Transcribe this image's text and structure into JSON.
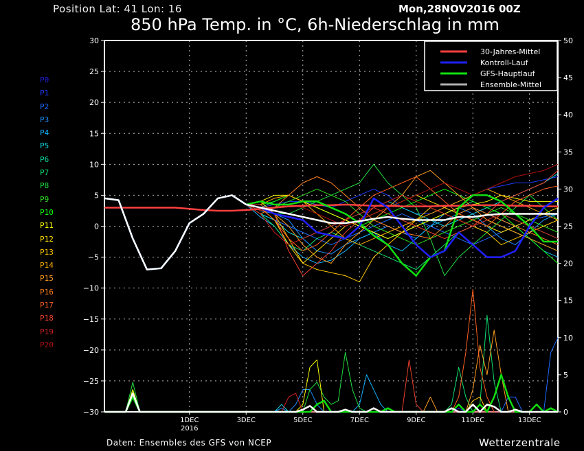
{
  "header": {
    "position": "Position  Lat: 41 Lon: 16",
    "date": "Mon,28NOV2016 00Z",
    "title": "850 hPa Temp. in °C, 6h-Niederschlag in mm"
  },
  "footer": {
    "source": "Daten: Ensembles des GFS von NCEP",
    "brand": "Wetterzentrale"
  },
  "members": [
    {
      "label": "P0",
      "color": "#2020e0"
    },
    {
      "label": "P1",
      "color": "#1c3cff"
    },
    {
      "label": "P2",
      "color": "#1e6cff"
    },
    {
      "label": "P3",
      "color": "#1e90ff"
    },
    {
      "label": "P4",
      "color": "#10b4ff"
    },
    {
      "label": "P5",
      "color": "#10d8e0"
    },
    {
      "label": "P6",
      "color": "#10e0a0"
    },
    {
      "label": "P7",
      "color": "#10e070"
    },
    {
      "label": "P8",
      "color": "#20e040"
    },
    {
      "label": "P9",
      "color": "#30e020"
    },
    {
      "label": "P10",
      "color": "#10ff10"
    },
    {
      "label": "P11",
      "color": "#ffff00"
    },
    {
      "label": "P12",
      "color": "#ffe000"
    },
    {
      "label": "P13",
      "color": "#ffc800"
    },
    {
      "label": "P14",
      "color": "#ffb000"
    },
    {
      "label": "P15",
      "color": "#ff9c20"
    },
    {
      "label": "P16",
      "color": "#ff8020"
    },
    {
      "label": "P17",
      "color": "#ff6020"
    },
    {
      "label": "P18",
      "color": "#f04030"
    },
    {
      "label": "P19",
      "color": "#d02020"
    },
    {
      "label": "P20",
      "color": "#b01010"
    }
  ],
  "chart_data": {
    "type": "line",
    "title": "850 hPa Temp. in °C, 6h-Niederschlag in mm",
    "xlabel": "",
    "ylabel_left": "°C",
    "ylabel_right": "mm",
    "x_unit": "hours since Mon,28NOV2016 00Z",
    "xlim": [
      0,
      384
    ],
    "ylim_left": [
      -30,
      30
    ],
    "ylim_right": [
      0,
      50
    ],
    "yticks_left": [
      30,
      25,
      20,
      15,
      10,
      5,
      0,
      -5,
      -10,
      -15,
      -20,
      -25,
      -30
    ],
    "yticks_right": [
      50,
      45,
      40,
      35,
      30,
      25,
      20,
      15,
      10,
      5,
      0
    ],
    "xticks": [
      {
        "hour": 72,
        "label": "1DEC",
        "sub": "2016"
      },
      {
        "hour": 120,
        "label": "3DEC"
      },
      {
        "hour": 168,
        "label": "5DEC"
      },
      {
        "hour": 216,
        "label": "7DEC"
      },
      {
        "hour": 264,
        "label": "9DEC"
      },
      {
        "hour": 312,
        "label": "11DEC"
      },
      {
        "hour": 360,
        "label": "13DEC"
      }
    ],
    "grid": true,
    "legend": {
      "placement": "top-right",
      "entries": [
        {
          "label": "30-Jahres-Mittel",
          "color": "#ff4040"
        },
        {
          "label": "Kontroll-Lauf",
          "color": "#2020ff"
        },
        {
          "label": "GFS-Hauptlauf",
          "color": "#10e010"
        },
        {
          "label": "Ensemble-Mittel",
          "color": "#b0b0b0"
        }
      ]
    },
    "temp_step_hours": 12,
    "temp_shared_start": [
      4.5,
      4.2,
      -2,
      -7,
      -6.8,
      -4,
      0.5,
      2,
      4.5,
      5,
      3.5
    ],
    "temp_members": [
      [
        3,
        2,
        1.5,
        1,
        -1,
        -1.5,
        -2,
        0,
        4.5,
        3,
        0,
        -3,
        -5,
        -4,
        -1,
        -3,
        -5,
        -5,
        -4,
        0,
        3,
        4.5
      ],
      [
        3,
        3.5,
        4,
        4,
        3.5,
        3,
        4,
        5,
        6,
        5,
        3,
        2,
        2,
        3,
        4,
        5,
        6,
        6.5,
        7,
        7,
        7.5,
        8
      ],
      [
        2,
        1,
        0,
        -1,
        -2,
        -3,
        -2,
        -1,
        0,
        1,
        2,
        1,
        0,
        -1,
        -2,
        -3,
        -2,
        -1,
        0,
        1,
        1.5,
        2
      ],
      [
        2.5,
        2,
        1,
        -2,
        -4,
        -4.5,
        -3,
        -2,
        -1,
        0,
        -1,
        -2,
        0,
        2,
        3,
        2,
        0,
        -2,
        -3,
        -1,
        1,
        2
      ],
      [
        1.5,
        0,
        -3,
        -5,
        -6,
        -5.5,
        -4,
        -2,
        -1,
        -3,
        -4,
        -2,
        0,
        1,
        2,
        3,
        2,
        1,
        0,
        -2,
        -4,
        -5
      ],
      [
        2,
        1,
        -1,
        -2,
        -1,
        0,
        1,
        2,
        3,
        4,
        3,
        2,
        1,
        0,
        1,
        2,
        3,
        4,
        5,
        6,
        7,
        8.5
      ],
      [
        3,
        4,
        5,
        4,
        3,
        2,
        1,
        0,
        -1,
        -2,
        -1,
        0,
        1,
        2,
        3,
        4,
        3,
        2,
        1,
        0,
        -1,
        -2
      ],
      [
        2,
        0,
        -3,
        -4,
        -2,
        -1,
        -2,
        -3,
        -4,
        -5,
        -6,
        -7,
        -5,
        -3,
        -1,
        0,
        1,
        0,
        -1,
        -2,
        -3,
        -4
      ],
      [
        3,
        2,
        2,
        3,
        4,
        5,
        6,
        7,
        10,
        7,
        5,
        3,
        -2,
        -8,
        -5,
        -3,
        -1,
        1,
        3,
        5,
        3,
        1
      ],
      [
        2.5,
        3,
        4,
        5,
        6,
        5,
        4,
        2,
        0,
        -1,
        -2,
        -3,
        -2,
        -1,
        0,
        1,
        2,
        3,
        2,
        1,
        0,
        -1
      ],
      [
        3.5,
        4,
        5,
        4,
        3,
        2,
        1,
        0,
        1,
        2,
        3,
        4,
        5,
        6,
        5,
        4,
        3,
        2,
        0,
        -2,
        -4,
        -6
      ],
      [
        4,
        5,
        5,
        4,
        3,
        2,
        1,
        0,
        -1,
        -2,
        -1,
        0,
        1,
        2,
        3,
        3.5,
        4,
        5,
        4.5,
        4,
        4,
        4
      ],
      [
        3,
        1,
        -3,
        -6,
        -4,
        -2,
        0,
        1,
        2,
        3,
        4,
        5,
        4,
        3,
        2,
        1,
        0,
        -1,
        0,
        1,
        2,
        3
      ],
      [
        4,
        2,
        -2,
        -6,
        -7,
        -7.5,
        -8,
        -9,
        -5,
        -3,
        -1,
        1,
        3,
        2,
        1,
        0,
        -1,
        -3,
        -2,
        -1,
        0,
        1
      ],
      [
        3.5,
        4.5,
        5,
        4,
        2,
        0,
        -2,
        -3,
        -2,
        -1,
        0,
        1,
        2,
        3,
        4,
        5,
        6,
        5,
        4,
        3,
        2,
        1
      ],
      [
        3,
        2,
        0,
        -3,
        -5,
        -6,
        -3,
        -1,
        1,
        3,
        5,
        8,
        9,
        7,
        5,
        3,
        1,
        0,
        -1,
        -2,
        -3,
        -4
      ],
      [
        2,
        3,
        5,
        7,
        8,
        7,
        5,
        3,
        1,
        0,
        -1,
        -1.5,
        -2,
        0,
        2,
        3,
        2,
        1,
        0,
        -1,
        -2,
        -3
      ],
      [
        3,
        1,
        -2,
        -4,
        -3,
        -1,
        1,
        3,
        5,
        6,
        7,
        8,
        6,
        4,
        2,
        1,
        0,
        2,
        4,
        5,
        6,
        6.5
      ],
      [
        3.5,
        2,
        -4,
        -8,
        -6,
        -4,
        -1,
        1,
        3,
        2,
        1,
        0,
        -1,
        -2,
        -1,
        0,
        2,
        4,
        5,
        6,
        7,
        9
      ],
      [
        2,
        -1,
        -3,
        -2,
        -1,
        0,
        1,
        2,
        3,
        4,
        5,
        4,
        3,
        2,
        1,
        0,
        1,
        2,
        1,
        0,
        -1,
        -2
      ],
      [
        2.5,
        3,
        3.5,
        3,
        2,
        1,
        0,
        1,
        2,
        3,
        4,
        5,
        6,
        7,
        6,
        5,
        6,
        7,
        8,
        8.5,
        9,
        10
      ]
    ],
    "temp_gfs": [
      4,
      3.5,
      3.5,
      4,
      4,
      3,
      2,
      0.5,
      -1.5,
      -3,
      -6,
      -8,
      -5,
      -4,
      3,
      5,
      5,
      4,
      2,
      0,
      -2.5,
      -2.5
    ],
    "temp_mean": [
      3,
      2.5,
      2,
      1.5,
      1,
      0.5,
      0.5,
      0.8,
      1.2,
      1.5,
      1.2,
      1,
      1,
      1,
      1.5,
      1.5,
      1.8,
      2,
      2,
      2,
      2,
      2
    ],
    "temp_climate": [
      3,
      3,
      3,
      3,
      3,
      3,
      2.8,
      2.6,
      2.5,
      2.5,
      2.6,
      2.8,
      3,
      3.2,
      3.3,
      3.4,
      3.4,
      3.5,
      3.4,
      3.3,
      3.3,
      3.2,
      3.2,
      3.2,
      3.3,
      3.3,
      3.4,
      3.4,
      3.4,
      3.3,
      3.3,
      3.2,
      3.2
    ],
    "precip_step_hours": 6,
    "precip_members": {
      "0": {
        "24": 2.5,
        "300": 0.5
      },
      "1": {
        "24": 2
      },
      "2": {
        "24": 2.5,
        "342": 2,
        "348": 2,
        "378": 8,
        "384": 10
      },
      "3": {
        "24": 3,
        "150": 0.5,
        "162": 1,
        "168": 3,
        "174": 3,
        "180": 1
      },
      "4": {
        "24": 2,
        "216": 1,
        "222": 5,
        "228": 3,
        "234": 1
      },
      "5": {
        "24": 2.5,
        "150": 1
      },
      "6": {
        "24": 3
      },
      "7": {
        "24": 2,
        "294": 1,
        "300": 6,
        "306": 2,
        "318": 1,
        "324": 13,
        "330": 4
      },
      "8": {
        "24": 4,
        "174": 3,
        "180": 4,
        "186": 2,
        "192": 1,
        "198": 1.5,
        "204": 8,
        "210": 3,
        "216": 0.5
      },
      "10": {
        "24": 3
      },
      "11": {
        "24": 3,
        "168": 1,
        "174": 6,
        "180": 7,
        "186": 0
      },
      "13": {
        "24": 2.5,
        "312": 1.5,
        "318": 2
      },
      "15": {
        "24": 2.5,
        "276": 2,
        "312": 3,
        "318": 9,
        "324": 5,
        "330": 11,
        "336": 5
      },
      "17": {
        "24": 2,
        "300": 2,
        "306": 8,
        "312": 16.5,
        "318": 6,
        "324": 2
      },
      "18": {
        "24": 2,
        "258": 7,
        "264": 1
      },
      "19": {
        "24": 2.5,
        "156": 2,
        "162": 2.5
      }
    },
    "precip_gfs": {
      "24": 2,
      "180": 1,
      "186": 1.5,
      "240": 0.5,
      "300": 1,
      "318": 1,
      "330": 2,
      "336": 5,
      "342": 2,
      "366": 1,
      "378": 0.5
    },
    "precip_mean": {
      "24": 2.5,
      "168": 0.3,
      "174": 0.8,
      "204": 0.3,
      "228": 0.5,
      "294": 0.5,
      "312": 1,
      "324": 1,
      "330": 0.7,
      "348": 0.3
    }
  }
}
